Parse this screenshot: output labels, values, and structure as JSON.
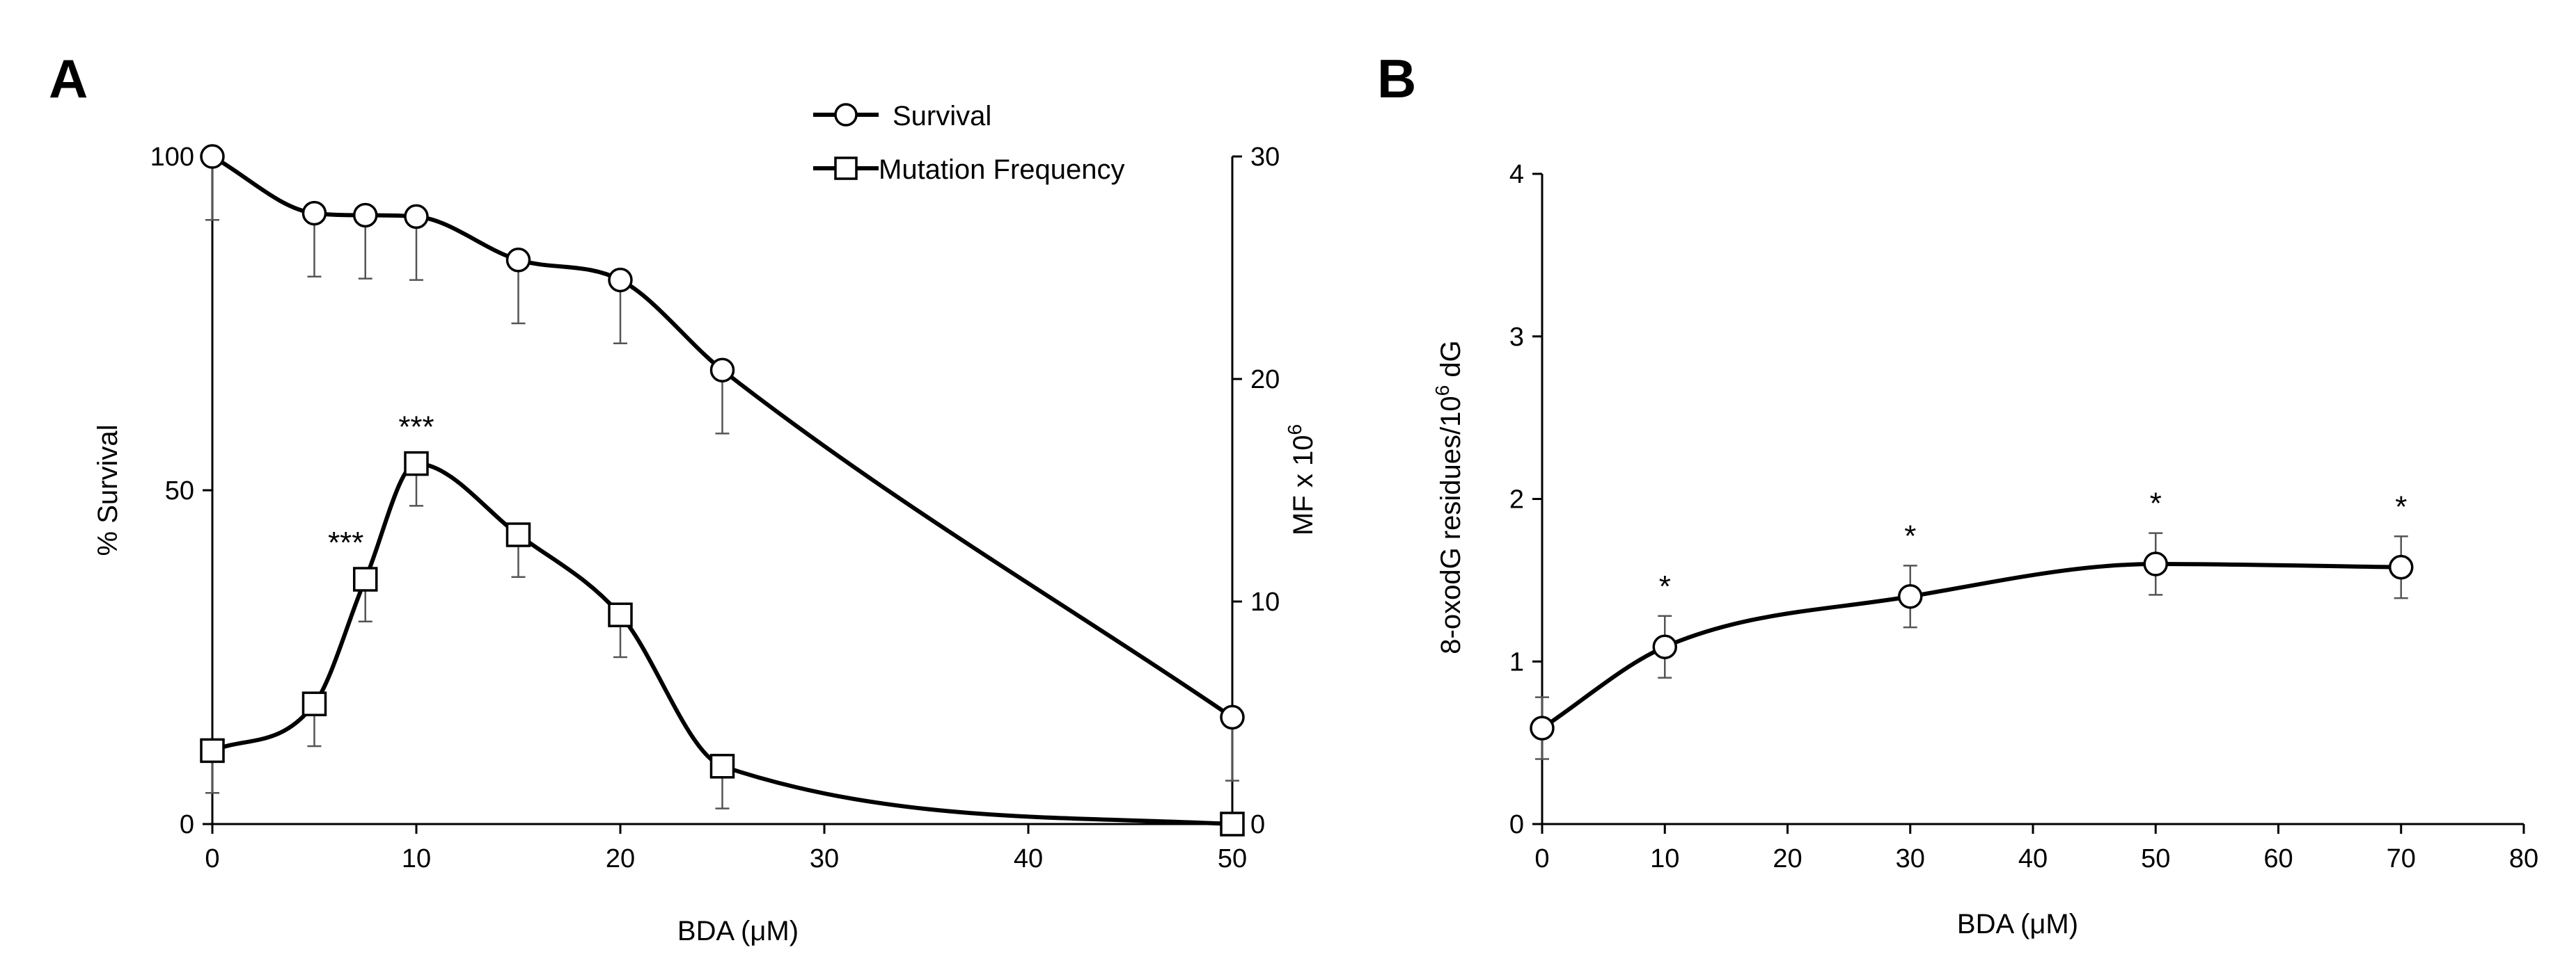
{
  "chart_data": [
    {
      "type": "line",
      "panel_label": "A",
      "xlabel": "BDA (μM)",
      "ylabel": "% Survival",
      "ylabel_right": "MF x 10",
      "ylabel_right_sup": "6",
      "xlim": [
        0,
        50
      ],
      "ylim": [
        0,
        100
      ],
      "ylim_right": [
        0,
        30
      ],
      "x_ticks": [
        0,
        10,
        20,
        30,
        40,
        50
      ],
      "y_ticks": [
        0,
        50,
        100
      ],
      "y_ticks_right": [
        0,
        10,
        20,
        30
      ],
      "legend_position": "top-center",
      "series": [
        {
          "name": "Survival",
          "marker": "circle",
          "axis": "left",
          "x": [
            0,
            5,
            7.5,
            10,
            15,
            20,
            25,
            50
          ],
          "y": [
            100,
            91.5,
            91.2,
            91,
            84.5,
            81.5,
            68,
            16
          ],
          "err": [
            9.5,
            9.5,
            9.5,
            9.5,
            9.5,
            9.5,
            9.5,
            9.5
          ]
        },
        {
          "name": "Mutation Frequency",
          "marker": "square",
          "axis": "right",
          "x": [
            0,
            5,
            7.5,
            10,
            15,
            20,
            25,
            50
          ],
          "y": [
            3.3,
            5.4,
            11,
            16.2,
            13,
            9.4,
            2.6,
            0
          ],
          "err": [
            1.9,
            1.9,
            1.9,
            1.9,
            1.9,
            1.9,
            1.9,
            1.9
          ]
        }
      ],
      "annotations": [
        {
          "text": "***",
          "x": 7.5,
          "series": "Mutation Frequency"
        },
        {
          "text": "***",
          "x": 10,
          "series": "Mutation Frequency"
        }
      ]
    },
    {
      "type": "line",
      "panel_label": "B",
      "xlabel": "BDA (μM)",
      "ylabel": "8-oxodG  residues/10",
      "ylabel_sup": "6",
      "ylabel_suffix": " dG",
      "xlim": [
        0,
        80
      ],
      "ylim": [
        0,
        4
      ],
      "x_ticks": [
        0,
        10,
        20,
        30,
        40,
        50,
        60,
        70,
        80
      ],
      "y_ticks": [
        0,
        1,
        2,
        3,
        4
      ],
      "series": [
        {
          "name": "8-oxodG",
          "marker": "circle",
          "x": [
            0,
            10,
            30,
            50,
            70
          ],
          "y": [
            0.59,
            1.09,
            1.4,
            1.6,
            1.58
          ],
          "err": [
            0.19,
            0.19,
            0.19,
            0.19,
            0.19
          ]
        }
      ],
      "annotations": [
        {
          "text": "*",
          "x": 10
        },
        {
          "text": "*",
          "x": 30
        },
        {
          "text": "*",
          "x": 50
        },
        {
          "text": "*",
          "x": 70
        }
      ]
    }
  ]
}
